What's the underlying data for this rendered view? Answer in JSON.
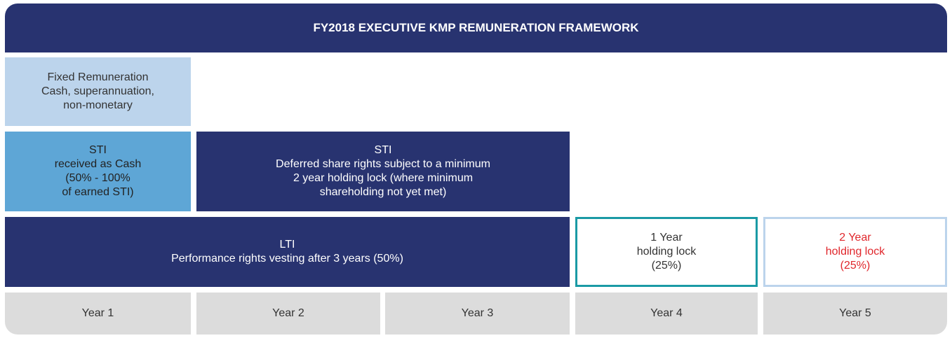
{
  "header": {
    "title": "FY2018 EXECUTIVE KMP REMUNERATION FRAMEWORK"
  },
  "blocks": [
    {
      "lines": [
        "Fixed Remuneration",
        "Cash, superannuation,",
        "non-monetary"
      ]
    },
    {
      "lines": [
        "STI",
        "received as Cash",
        "(50% - 100%",
        "of earned STI)"
      ]
    },
    {
      "lines": [
        "STI",
        "Deferred share rights subject to a minimum",
        "2 year holding lock (where minimum",
        "shareholding not yet met)"
      ]
    },
    {
      "lines": [
        "LTI",
        "Performance rights vesting after 3 years (50%)"
      ]
    },
    {
      "lines": [
        "1 Year",
        "holding lock",
        "(25%)"
      ]
    },
    {
      "lines": [
        "2 Year",
        "holding lock",
        "(25%)"
      ]
    }
  ],
  "years": [
    "Year 1",
    "Year 2",
    "Year 3",
    "Year 4",
    "Year 5"
  ]
}
